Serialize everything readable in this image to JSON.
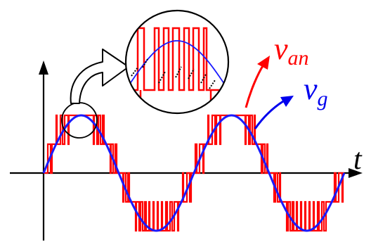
{
  "labels": {
    "van_main": "v",
    "van_sub": "an",
    "vg_main": "v",
    "vg_sub": "g",
    "time_axis": "t"
  },
  "colors": {
    "staircase": "#ff0000",
    "grid_voltage": "#1a1aff",
    "axes": "#000000",
    "van_arrow": "#ff0000",
    "vg_arrow": "#0000ee"
  },
  "icons": {
    "zoom_circle": "magnifier-circle",
    "callout_arrow": "curved-outline-arrow"
  }
}
